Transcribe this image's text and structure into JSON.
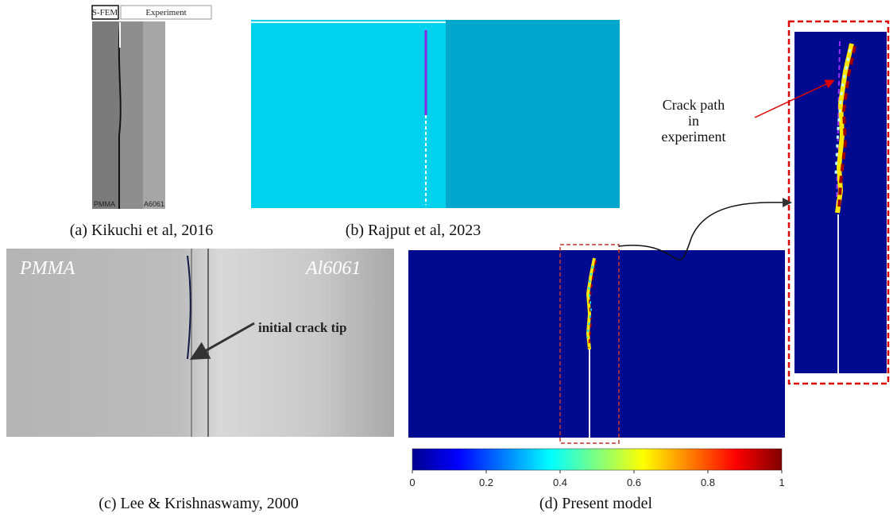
{
  "panels": {
    "a": {
      "labels": [
        "S-FEM",
        "Experiment"
      ],
      "materials": [
        "PMMA",
        "A6061"
      ],
      "caption": "(a) Kikuchi et al, 2016"
    },
    "b": {
      "caption": "(b) Rajput et al, 2023"
    },
    "c": {
      "materials": [
        "PMMA",
        "Al6061"
      ],
      "annotation": "initial crack tip",
      "caption": "(c) Lee & Krishnaswamy, 2000"
    },
    "d": {
      "caption": "(d) Present model",
      "colorbar": {
        "lim": [
          0,
          1
        ],
        "ticks": [
          0,
          0.2,
          0.4,
          0.6,
          0.8,
          1
        ]
      }
    },
    "inset": {
      "annotation": [
        "Crack path",
        "in",
        "experiment"
      ]
    }
  }
}
